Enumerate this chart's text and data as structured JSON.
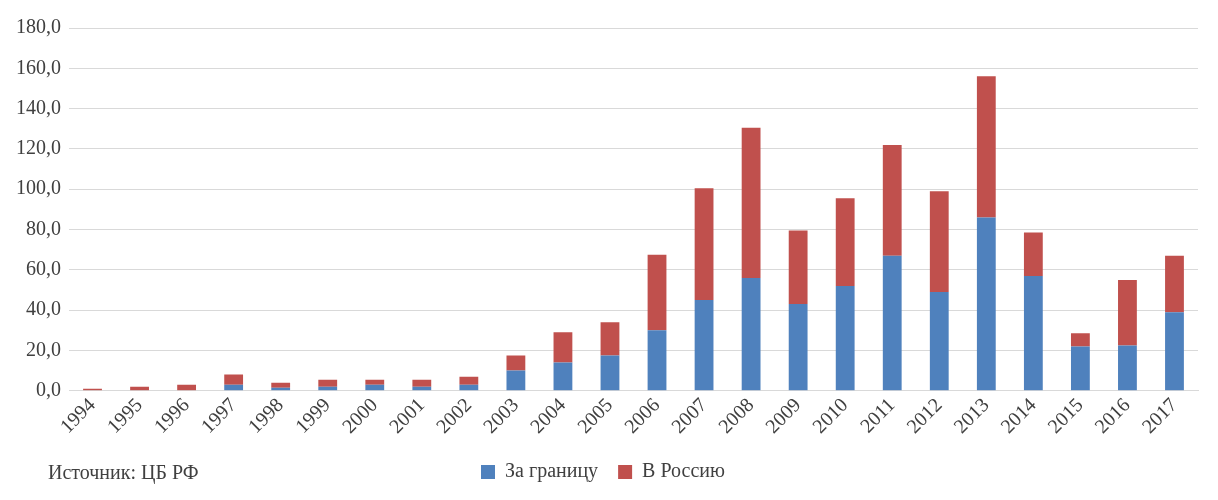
{
  "chart_data": {
    "type": "bar",
    "stacked": true,
    "categories": [
      "1994",
      "1995",
      "1996",
      "1997",
      "1998",
      "1999",
      "2000",
      "2001",
      "2002",
      "2003",
      "2004",
      "2005",
      "2006",
      "2007",
      "2008",
      "2009",
      "2010",
      "2011",
      "2012",
      "2013",
      "2014",
      "2015",
      "2016",
      "2017"
    ],
    "series": [
      {
        "name": "За границу",
        "color": "#4f81bd",
        "values": [
          0,
          0,
          0,
          3,
          1.5,
          2,
          3,
          2,
          3,
          10,
          14,
          17.5,
          30,
          45,
          56,
          43,
          52,
          67,
          49,
          86,
          57,
          22,
          22.5,
          39
        ]
      },
      {
        "name": "В Россию",
        "color": "#c0504d",
        "values": [
          1,
          2,
          3,
          5,
          2.5,
          3.5,
          2.5,
          3.5,
          4,
          7.5,
          15,
          16.5,
          37.5,
          55.5,
          74.5,
          36.5,
          43.5,
          55,
          50,
          70,
          21.5,
          6.5,
          32.5,
          28
        ]
      }
    ],
    "ylim": [
      0,
      180
    ],
    "yticks": [
      {
        "value": 0,
        "label": "0,0"
      },
      {
        "value": 20,
        "label": "20,0"
      },
      {
        "value": 40,
        "label": "40,0"
      },
      {
        "value": 60,
        "label": "60,0"
      },
      {
        "value": 80,
        "label": "80,0"
      },
      {
        "value": 100,
        "label": "100,0"
      },
      {
        "value": 120,
        "label": "120,0"
      },
      {
        "value": 140,
        "label": "140,0"
      },
      {
        "value": 160,
        "label": "160,0"
      },
      {
        "value": 180,
        "label": "180,0"
      }
    ],
    "grid": "y",
    "legend": "bottom",
    "annotations": [
      "Источник: ЦБ РФ"
    ]
  }
}
